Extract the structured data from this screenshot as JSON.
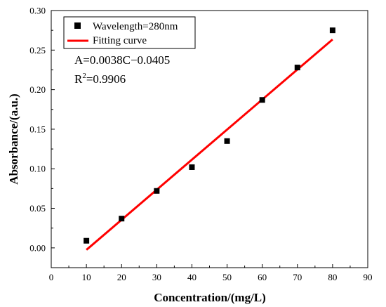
{
  "chart_data": {
    "type": "scatter",
    "xlabel": "Concentration/(mg/L)",
    "ylabel": "Absorbance/(a.u.)",
    "xlim": [
      0,
      90
    ],
    "ylim": [
      -0.025,
      0.3
    ],
    "x_ticks": [
      "0",
      "10",
      "20",
      "30",
      "40",
      "50",
      "60",
      "70",
      "80",
      "90"
    ],
    "y_ticks": [
      "0.00",
      "0.05",
      "0.10",
      "0.15",
      "0.20",
      "0.25",
      "0.30"
    ],
    "grid": false,
    "legend_position": "top-left",
    "series": [
      {
        "name": "Wavelength=280nm",
        "type": "scatter",
        "marker": "square",
        "color": "#000000",
        "x": [
          10,
          20,
          30,
          40,
          50,
          60,
          70,
          80
        ],
        "y": [
          0.009,
          0.037,
          0.072,
          0.102,
          0.135,
          0.187,
          0.228,
          0.275
        ]
      },
      {
        "name": "Fitting curve",
        "type": "line",
        "color": "#ff0000",
        "x": [
          10,
          80
        ],
        "y": [
          -0.0025,
          0.2635
        ]
      }
    ],
    "annotations": {
      "equation": "A=0.0038C−0.0405",
      "r2_label": "R",
      "r2_sup": "2",
      "r2_value": "=0.9906"
    }
  }
}
